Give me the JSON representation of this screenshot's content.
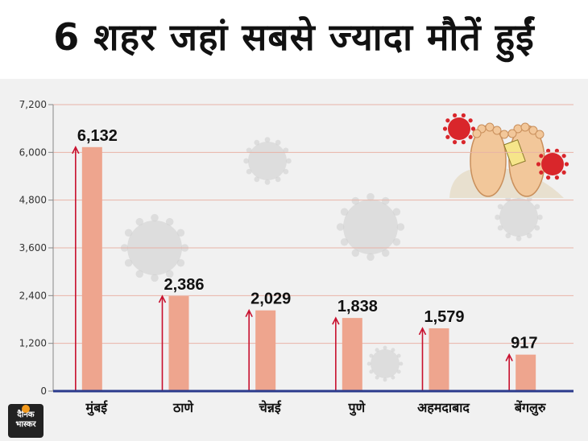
{
  "title": "6 शहर जहां सबसे ज्यादा मौतें हुईं",
  "brand": {
    "line1": "दैनिक",
    "line2": "भास्कर"
  },
  "colors": {
    "bar": "#eea58e",
    "arrow": "#c8102e",
    "axis": "#2b3a8c",
    "grid": "#e8b3a6",
    "virus": "#d1d1d1"
  },
  "chart_data": {
    "type": "bar",
    "title": "6 शहर जहां सबसे ज्यादा मौतें हुईं",
    "xlabel": "",
    "ylabel": "",
    "categories": [
      "मुंबई",
      "ठाणे",
      "चेन्नई",
      "पुणे",
      "अहमदाबाद",
      "बेंगलुरु"
    ],
    "values": [
      6132,
      2386,
      2029,
      1838,
      1579,
      917
    ],
    "value_labels": [
      "6,132",
      "2,386",
      "2,029",
      "1,838",
      "1,579",
      "917"
    ],
    "yticks": [
      0,
      1200,
      2400,
      3600,
      4800,
      6000,
      7200
    ],
    "ytick_labels": [
      "0",
      "1,200",
      "2,400",
      "3,600",
      "4,800",
      "6,000",
      "7,200"
    ],
    "ylim": [
      0,
      7200
    ],
    "grid": true
  }
}
